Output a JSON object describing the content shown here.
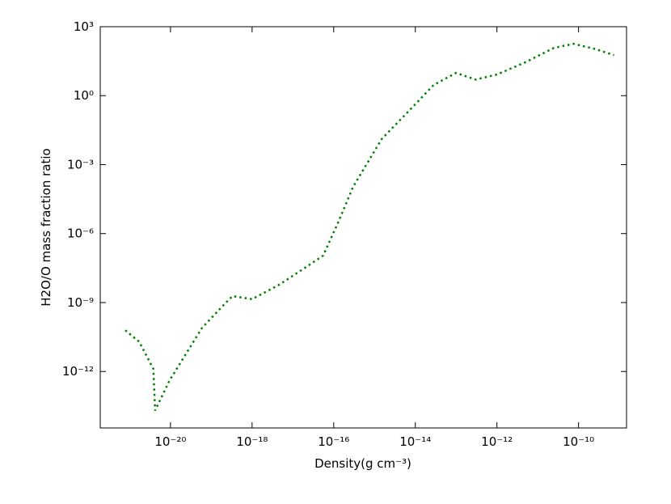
{
  "chart_data": {
    "type": "line",
    "xlabel": "Density(g cm⁻³)",
    "ylabel": "H2O/O mass fraction ratio",
    "xscale": "log",
    "yscale": "log",
    "xlim": [
      1.9e-22,
      1.5e-09
    ],
    "ylim": [
      3.5e-15,
      1000
    ],
    "xticks": [
      {
        "value": 1e-20,
        "label": "10⁻²⁰"
      },
      {
        "value": 1e-18,
        "label": "10⁻¹⁸"
      },
      {
        "value": 1e-16,
        "label": "10⁻¹⁶"
      },
      {
        "value": 1e-14,
        "label": "10⁻¹⁴"
      },
      {
        "value": 1e-12,
        "label": "10⁻¹²"
      },
      {
        "value": 1e-10,
        "label": "10⁻¹⁰"
      }
    ],
    "yticks": [
      {
        "value": 1e-12,
        "label": "10⁻¹²"
      },
      {
        "value": 1e-09,
        "label": "10⁻⁹"
      },
      {
        "value": 1e-06,
        "label": "10⁻⁶"
      },
      {
        "value": 0.001,
        "label": "10⁻³"
      },
      {
        "value": 1,
        "label": "10⁰"
      },
      {
        "value": 1000,
        "label": "10³"
      }
    ],
    "x": [
      7.8e-22,
      1.7e-21,
      3.8e-21,
      4.2e-21,
      9.5e-21,
      5.9e-20,
      1.9e-19,
      3.3e-19,
      1e-18,
      4.5e-18,
      1.8e-17,
      5.5e-17,
      1.3e-16,
      3e-16,
      1.5e-15,
      8.3e-15,
      2.8e-14,
      1e-13,
      3e-13,
      1e-12,
      4.9e-12,
      2.5e-11,
      7.6e-11,
      2.4e-10,
      7.4e-10
    ],
    "series": [
      {
        "color": "#008000",
        "linestyle": "dotted",
        "values": [
          6.2e-11,
          2e-11,
          1.3e-12,
          2e-14,
          4.1e-13,
          7.8e-11,
          7.1e-10,
          1.9e-09,
          1.4e-09,
          5.8e-09,
          2.9e-08,
          1.1e-07,
          3.2e-06,
          0.00011,
          0.013,
          0.3,
          2.9,
          9.8,
          5.0,
          8.3,
          28,
          120,
          180,
          110,
          58
        ]
      }
    ]
  }
}
